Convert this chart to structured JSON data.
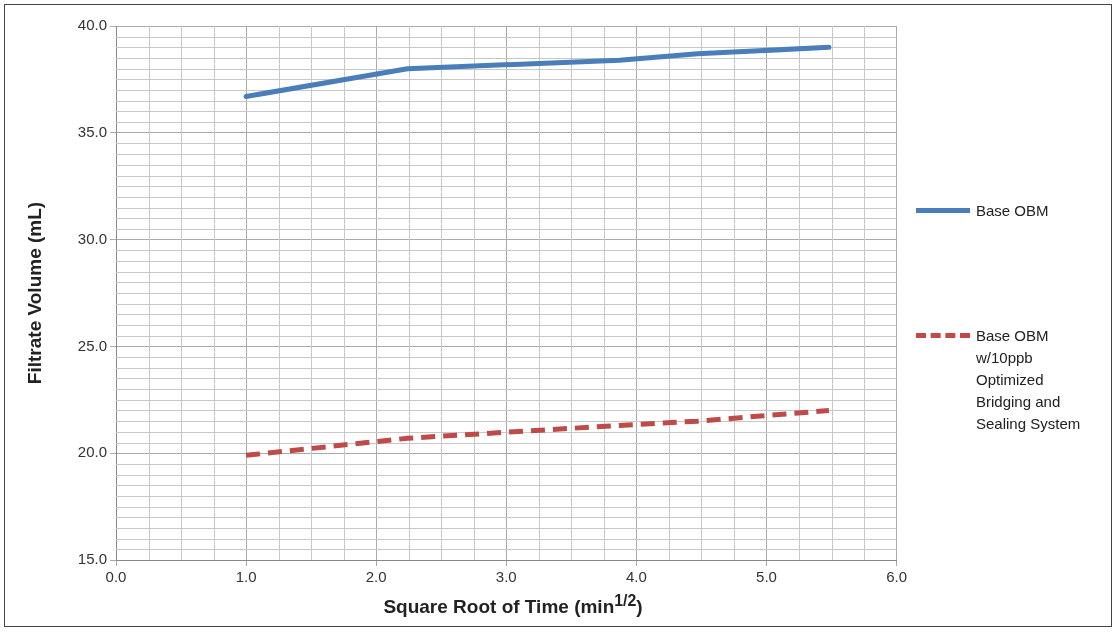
{
  "chart_data": {
    "type": "line",
    "xlabel": "Square Root of Time (min$^{1/2}$)",
    "ylabel": "Filtrate Volume (mL)",
    "x": [
      1.0,
      2.24,
      3.87,
      4.47,
      5.48
    ],
    "series": [
      {
        "name": "Base OBM",
        "color": "#4a7ebb",
        "values": [
          36.7,
          38.0,
          38.4,
          38.7,
          39.0
        ],
        "line_style": "solid"
      },
      {
        "name": "Base OBM w/10ppb Optimized Bridging and Sealing System",
        "color": "#be4b48",
        "values": [
          19.9,
          20.7,
          21.3,
          21.5,
          22.0
        ],
        "line_style": "dashed"
      }
    ],
    "xlim": [
      0,
      6
    ],
    "xticks": [
      {
        "value": 0,
        "label": "0.0"
      },
      {
        "value": 1,
        "label": "1.0"
      },
      {
        "value": 2,
        "label": "2.0"
      },
      {
        "value": 3,
        "label": "3.0"
      },
      {
        "value": 4,
        "label": "4.0"
      },
      {
        "value": 5,
        "label": "5.0"
      },
      {
        "value": 6,
        "label": "6.0"
      }
    ],
    "ylim": [
      15,
      40
    ],
    "yticks": [
      {
        "value": 15,
        "label": "15.0"
      },
      {
        "value": 20,
        "label": "20.0"
      },
      {
        "value": 25,
        "label": "25.0"
      },
      {
        "value": 30,
        "label": "30.0"
      },
      {
        "value": 35,
        "label": "35.0"
      },
      {
        "value": 40,
        "label": "40.0"
      }
    ],
    "grid": true,
    "legend": "right",
    "marker": "none"
  }
}
